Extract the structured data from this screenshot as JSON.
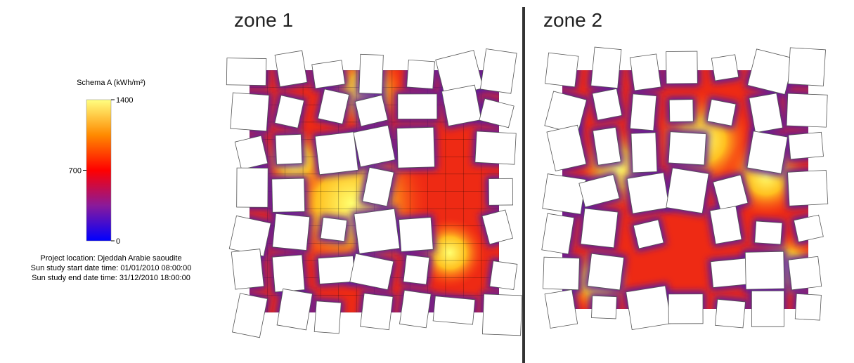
{
  "legend": {
    "title": "Schema A (kWh/m²)",
    "lim": [
      0,
      1400
    ],
    "ticks": [
      1400,
      700,
      0
    ],
    "colors": [
      "#0000ff",
      "#8a1a9a",
      "#ff0000",
      "#ff8a00",
      "#ffff80"
    ]
  },
  "project_info": [
    "Project location: Djeddah Arabie saoudite",
    "Sun study start date time: 01/01/2010 08:00:00",
    "Sun study end date time: 31/12/2010 18:00:00"
  ],
  "zones": [
    {
      "label": "zone 1"
    },
    {
      "label": "zone 2"
    }
  ]
}
